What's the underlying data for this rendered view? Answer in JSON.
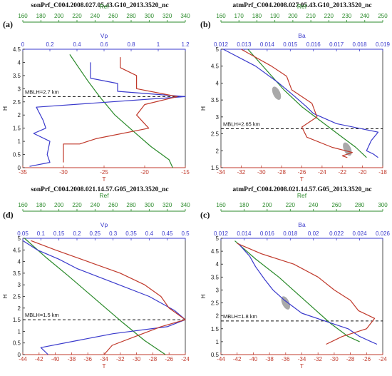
{
  "colors": {
    "green": "#2a8a2a",
    "blue": "#3a3acc",
    "red": "#c0392b",
    "dashed": "#111111",
    "ellipse": "#9a9a9a"
  },
  "chart_data": [
    {
      "type": "line",
      "panel_label": "(a)",
      "title": "sonPrf_C004.2008.027.05.43.G10_2013.3520_nc",
      "ylabel": "H",
      "ylim": [
        0,
        4.5
      ],
      "yticks": [
        "0",
        "0.5",
        "1",
        "1.5",
        "2",
        "2.5",
        "3",
        "3.5",
        "4",
        "4.5"
      ],
      "axes": {
        "top_green": {
          "label": "Ref",
          "range": [
            160,
            340
          ],
          "ticks": [
            "160",
            "180",
            "200",
            "220",
            "240",
            "260",
            "280",
            "300",
            "320",
            "340"
          ]
        },
        "top_blue": {
          "label": "Vp",
          "range": [
            0,
            1.2
          ],
          "ticks": [
            "0",
            "0.2",
            "0.4",
            "0.6",
            "0.8",
            "1",
            "1.2"
          ]
        },
        "bottom_red": {
          "label": "T",
          "range": [
            -35,
            -15
          ],
          "ticks": [
            "-35",
            "-30",
            "-25",
            "-20",
            "-15"
          ]
        }
      },
      "mblh": {
        "label": "MBLH=2.7 km",
        "value": 2.7
      },
      "series": [
        {
          "axis": "top_green",
          "points": [
            [
              212,
              4.3
            ],
            [
              222,
              3.8
            ],
            [
              232,
              3.3
            ],
            [
              245,
              2.7
            ],
            [
              262,
              2.0
            ],
            [
              282,
              1.4
            ],
            [
              302,
              0.8
            ],
            [
              322,
              0.3
            ],
            [
              326,
              0.0
            ]
          ]
        },
        {
          "axis": "top_blue",
          "points": [
            [
              0.5,
              4.0
            ],
            [
              0.5,
              3.4
            ],
            [
              0.7,
              3.2
            ],
            [
              0.7,
              2.9
            ],
            [
              1.2,
              2.7
            ],
            [
              0.1,
              2.3
            ],
            [
              0.15,
              1.8
            ],
            [
              0.17,
              1.5
            ],
            [
              0.08,
              1.3
            ],
            [
              0.2,
              1.0
            ],
            [
              0.18,
              0.5
            ],
            [
              0.2,
              0.2
            ],
            [
              0.05,
              0.05
            ]
          ]
        },
        {
          "axis": "bottom_red",
          "points": [
            [
              -23,
              4.2
            ],
            [
              -23,
              3.8
            ],
            [
              -21,
              3.5
            ],
            [
              -21,
              3.0
            ],
            [
              -16,
              2.7
            ],
            [
              -20,
              2.4
            ],
            [
              -21,
              2.0
            ],
            [
              -19.5,
              1.5
            ],
            [
              -26,
              1.1
            ],
            [
              -28,
              0.9
            ],
            [
              -30,
              0.9
            ],
            [
              -30,
              0.5
            ],
            [
              -30,
              0.2
            ]
          ]
        }
      ]
    },
    {
      "type": "line",
      "panel_label": "(b)",
      "title": "atmPrf_C004.2008.027.05.43.G10_2013.3520_nc",
      "ylabel": "H",
      "ylim": [
        1.5,
        5
      ],
      "yticks": [
        "1.5",
        "2",
        "2.5",
        "3",
        "3.5",
        "4",
        "4.5",
        "5"
      ],
      "axes": {
        "top_green": {
          "label": "Ref",
          "range": [
            160,
            250
          ],
          "ticks": [
            "160",
            "170",
            "180",
            "190",
            "200",
            "210",
            "220",
            "230",
            "240",
            "250"
          ]
        },
        "top_blue": {
          "label": "Ba",
          "range": [
            0.012,
            0.019
          ],
          "ticks": [
            "0.012",
            "0.013",
            "0.014",
            "0.015",
            "0.016",
            "0.017",
            "0.018",
            "0.019"
          ]
        },
        "bottom_red": {
          "label": "T",
          "range": [
            -34,
            -18
          ],
          "ticks": [
            "-34",
            "-32",
            "-30",
            "-28",
            "-26",
            "-24",
            "-22",
            "-20",
            "-18"
          ]
        }
      },
      "mblh": {
        "label": "MBLH=2.65 km",
        "value": 2.65
      },
      "ellipses": [
        [
          -28.5,
          3.7
        ],
        [
          -21.5,
          2.05
        ]
      ],
      "series": [
        {
          "axis": "top_green",
          "points": [
            [
              175,
              5.0
            ],
            [
              185,
              4.4
            ],
            [
              195,
              3.8
            ],
            [
              205,
              3.3
            ],
            [
              215,
              2.9
            ],
            [
              225,
              2.5
            ],
            [
              235,
              2.1
            ],
            [
              241,
              1.8
            ]
          ]
        },
        {
          "axis": "top_blue",
          "points": [
            [
              0.0121,
              5.0
            ],
            [
              0.0135,
              4.5
            ],
            [
              0.0145,
              4.0
            ],
            [
              0.0152,
              3.6
            ],
            [
              0.0157,
              3.3
            ],
            [
              0.016,
              3.1
            ],
            [
              0.017,
              2.8
            ],
            [
              0.0188,
              2.55
            ],
            [
              0.0185,
              2.3
            ],
            [
              0.0183,
              2.0
            ],
            [
              0.0186,
              1.9
            ],
            [
              0.0188,
              1.8
            ]
          ]
        },
        {
          "axis": "bottom_red",
          "points": [
            [
              -32,
              5.0
            ],
            [
              -29,
              4.5
            ],
            [
              -27.5,
              4.2
            ],
            [
              -27,
              3.8
            ],
            [
              -25,
              3.4
            ],
            [
              -24.5,
              3.0
            ],
            [
              -26,
              2.7
            ],
            [
              -25.5,
              2.4
            ],
            [
              -23,
              2.1
            ],
            [
              -21,
              1.95
            ],
            [
              -22,
              1.85
            ],
            [
              -21.5,
              1.8
            ]
          ]
        }
      ]
    },
    {
      "type": "line",
      "panel_label": "(d)",
      "title": "sonPrf_C004.2008.021.14.57.G05_2013.3520_nc",
      "ylabel": "H",
      "ylim": [
        0,
        5
      ],
      "yticks": [
        "0",
        "0.5",
        "1",
        "1.5",
        "2",
        "2.5",
        "3",
        "3.5",
        "4",
        "4.5",
        "5"
      ],
      "axes": {
        "top_green": {
          "label": "Ref",
          "range": [
            160,
            340
          ],
          "ticks": [
            "160",
            "180",
            "200",
            "220",
            "240",
            "260",
            "280",
            "300",
            "320",
            "340"
          ]
        },
        "top_blue": {
          "label": "Vp",
          "range": [
            0.05,
            0.5
          ],
          "ticks": [
            "0.05",
            "0.1",
            "0.15",
            "0.2",
            "0.25",
            "0.3",
            "0.35",
            "0.4",
            "0.45",
            "0.5"
          ]
        },
        "bottom_red": {
          "label": "T",
          "range": [
            -44,
            -24
          ],
          "ticks": [
            "-44",
            "-42",
            "-40",
            "-38",
            "-36",
            "-34",
            "-32",
            "-30",
            "-28",
            "-26",
            "-24"
          ]
        }
      },
      "mblh": {
        "label": "MBLH=1.5 km",
        "value": 1.5
      },
      "series": [
        {
          "axis": "top_green",
          "points": [
            [
              162,
              5.0
            ],
            [
              185,
              4.2
            ],
            [
              210,
              3.4
            ],
            [
              240,
              2.4
            ],
            [
              270,
              1.4
            ],
            [
              295,
              0.6
            ],
            [
              318,
              0.0
            ]
          ]
        },
        {
          "axis": "top_blue",
          "points": [
            [
              0.05,
              4.9
            ],
            [
              0.09,
              4.5
            ],
            [
              0.15,
              4.1
            ],
            [
              0.2,
              3.7
            ],
            [
              0.3,
              3.1
            ],
            [
              0.4,
              2.5
            ],
            [
              0.47,
              1.9
            ],
            [
              0.5,
              1.5
            ],
            [
              0.45,
              1.2
            ],
            [
              0.3,
              0.9
            ],
            [
              0.2,
              0.6
            ],
            [
              0.1,
              0.3
            ],
            [
              0.12,
              0.0
            ]
          ]
        },
        {
          "axis": "bottom_red",
          "points": [
            [
              -43,
              4.9
            ],
            [
              -40,
              4.5
            ],
            [
              -36,
              4.0
            ],
            [
              -32,
              3.5
            ],
            [
              -29,
              3.0
            ],
            [
              -27,
              2.5
            ],
            [
              -26,
              2.0
            ],
            [
              -24,
              1.5
            ],
            [
              -27,
              1.2
            ],
            [
              -30,
              0.8
            ],
            [
              -33,
              0.4
            ],
            [
              -34,
              0.0
            ]
          ]
        }
      ]
    },
    {
      "type": "line",
      "panel_label": "(c)",
      "title": "atmPrf_C004.2008.021.14.57.G05_2013.3520_nc",
      "ylabel": "H",
      "ylim": [
        0.5,
        5
      ],
      "yticks": [
        "0.5",
        "1",
        "1.5",
        "2",
        "2.5",
        "3",
        "3.5",
        "4",
        "4.5",
        "5"
      ],
      "axes": {
        "top_green": {
          "label": "Ref",
          "range": [
            160,
            300
          ],
          "ticks": [
            "160",
            "180",
            "200",
            "220",
            "240",
            "260",
            "280",
            "300"
          ]
        },
        "top_blue": {
          "label": "Ba",
          "range": [
            0.012,
            0.026
          ],
          "ticks": [
            "0.012",
            "0.014",
            "0.016",
            "0.018",
            "0.02",
            "0.022",
            "0.024",
            "0.026"
          ]
        },
        "bottom_red": {
          "label": "T",
          "range": [
            -44,
            -24
          ],
          "ticks": [
            "-44",
            "-42",
            "-40",
            "-38",
            "-36",
            "-34",
            "-32",
            "-30",
            "-28",
            "-26",
            "-24"
          ]
        }
      },
      "mblh": {
        "label": "MBLH=1.8 km",
        "value": 1.8
      },
      "ellipses": [
        [
          -36,
          2.5
        ]
      ],
      "series": [
        {
          "axis": "top_green",
          "points": [
            [
              172,
              4.9
            ],
            [
              190,
              4.2
            ],
            [
              210,
              3.5
            ],
            [
              225,
              2.9
            ],
            [
              240,
              2.3
            ],
            [
              255,
              1.7
            ],
            [
              270,
              1.2
            ],
            [
              280,
              1.0
            ]
          ]
        },
        {
          "axis": "top_blue",
          "points": [
            [
              0.0135,
              4.8
            ],
            [
              0.0145,
              4.3
            ],
            [
              0.015,
              3.9
            ],
            [
              0.0158,
              3.4
            ],
            [
              0.0165,
              3.0
            ],
            [
              0.0175,
              2.6
            ],
            [
              0.019,
              2.1
            ],
            [
              0.021,
              1.8
            ],
            [
              0.023,
              1.5
            ],
            [
              0.024,
              1.2
            ],
            [
              0.025,
              1.0
            ],
            [
              0.0255,
              0.9
            ]
          ]
        },
        {
          "axis": "bottom_red",
          "points": [
            [
              -42,
              4.8
            ],
            [
              -39,
              4.4
            ],
            [
              -35,
              4.0
            ],
            [
              -32,
              3.5
            ],
            [
              -30,
              3.0
            ],
            [
              -28,
              2.6
            ],
            [
              -27,
              2.2
            ],
            [
              -25,
              1.9
            ],
            [
              -26,
              1.5
            ],
            [
              -29,
              1.2
            ],
            [
              -31,
              0.9
            ]
          ]
        }
      ]
    }
  ]
}
